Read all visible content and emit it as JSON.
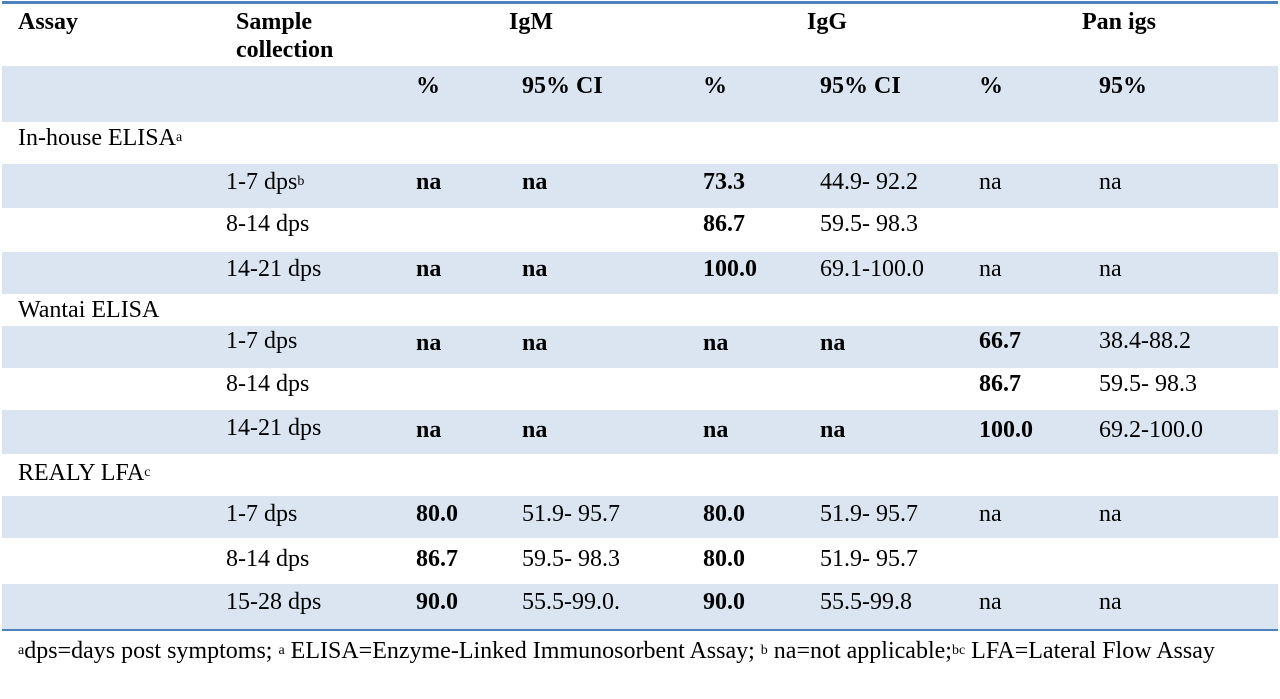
{
  "table": {
    "header": {
      "assay": "Assay",
      "sample_line1": "Sample",
      "sample_line2": "collection",
      "igm": "IgM",
      "igg": "IgG",
      "pan": "Pan igs"
    },
    "subheader": {
      "igm_pct": "%",
      "igm_ci": "95% CI",
      "igg_pct": "%",
      "igg_ci": "95% CI",
      "pan_pct": "%",
      "pan_ci": "95%"
    },
    "groups": [
      {
        "name": "In-house ELISA",
        "sup": "a",
        "rows": [
          {
            "sample": "1-7 dps",
            "sample_sup": "b",
            "igm_pct": "na",
            "igm_ci": "na",
            "igg_pct": "73.3",
            "igg_ci": "44.9- 92.2",
            "pan_pct": "na",
            "pan_ci": "na"
          },
          {
            "sample": "8-14 dps",
            "sample_sup": "",
            "igm_pct": "",
            "igm_ci": "",
            "igg_pct": "86.7",
            "igg_ci": "59.5- 98.3",
            "pan_pct": "",
            "pan_ci": ""
          },
          {
            "sample": "14-21 dps",
            "sample_sup": "",
            "igm_pct": "na",
            "igm_ci": "na",
            "igg_pct": "100.0",
            "igg_ci": "69.1-100.0",
            "pan_pct": "na",
            "pan_ci": "na"
          }
        ]
      },
      {
        "name": "Wantai ELISA",
        "sup": "",
        "rows": [
          {
            "sample": "1-7 dps",
            "sample_sup": "",
            "igm_pct": "na",
            "igm_ci": "na",
            "igg_pct": "na",
            "igg_ci": "na",
            "pan_pct": "66.7",
            "pan_ci": "38.4-88.2"
          },
          {
            "sample": "8-14 dps",
            "sample_sup": "",
            "igm_pct": "",
            "igm_ci": "",
            "igg_pct": "",
            "igg_ci": "",
            "pan_pct": "86.7",
            "pan_ci": "59.5- 98.3"
          },
          {
            "sample": "14-21 dps",
            "sample_sup": "",
            "igm_pct": "na",
            "igm_ci": "na",
            "igg_pct": "na",
            "igg_ci": "na",
            "pan_pct": "100.0",
            "pan_ci": "69.2-100.0"
          }
        ]
      },
      {
        "name": "REALY LFA",
        "sup": "c",
        "rows": [
          {
            "sample": "1-7 dps",
            "sample_sup": "",
            "igm_pct": "80.0",
            "igm_ci": "51.9- 95.7",
            "igg_pct": "80.0",
            "igg_ci": "51.9- 95.7",
            "pan_pct": "na",
            "pan_ci": "na"
          },
          {
            "sample": "8-14 dps",
            "sample_sup": "",
            "igm_pct": "86.7",
            "igm_ci": "59.5- 98.3",
            "igg_pct": "80.0",
            "igg_ci": "51.9- 95.7",
            "pan_pct": "",
            "pan_ci": ""
          },
          {
            "sample": "15-28 dps",
            "sample_sup": "",
            "igm_pct": "90.0",
            "igm_ci": "55.5-99.0.",
            "igg_pct": "90.0",
            "igg_ci": "55.5-99.8",
            "pan_pct": "na",
            "pan_ci": "na"
          }
        ]
      }
    ]
  },
  "footnote": {
    "s1": "a",
    "t1": "dps=days post symptoms; ",
    "s2": "a",
    "t2": " ELISA=Enzyme-Linked Immunosorbent Assay; ",
    "s3": "b",
    "t3": " na=not applicable;",
    "s4": "bc",
    "t4": " LFA=Lateral Flow Assay"
  },
  "colors": {
    "accent": "#4f81bd",
    "shade": "#dbe5f1"
  },
  "bold_values": {
    "igm_pct": true,
    "igm_ci_na": true,
    "igg_pct": true,
    "igg_ci_na": true,
    "pan_pct_numeric": true
  }
}
